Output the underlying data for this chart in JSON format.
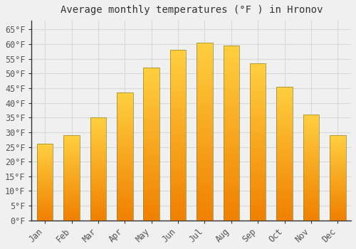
{
  "title": "Average monthly temperatures (°F ) in Hronov",
  "months": [
    "Jan",
    "Feb",
    "Mar",
    "Apr",
    "May",
    "Jun",
    "Jul",
    "Aug",
    "Sep",
    "Oct",
    "Nov",
    "Dec"
  ],
  "values": [
    26,
    29,
    35,
    43.5,
    52,
    58,
    60.5,
    59.5,
    53.5,
    45.5,
    36,
    29
  ],
  "bar_color": "#FFA500",
  "bar_color_top": "#FFD700",
  "bar_color_bottom": "#F08000",
  "ylim": [
    0,
    68
  ],
  "yticks": [
    0,
    5,
    10,
    15,
    20,
    25,
    30,
    35,
    40,
    45,
    50,
    55,
    60,
    65
  ],
  "grid_color": "#d8d8d8",
  "bg_color": "#f0f0f0",
  "plot_bg_color": "#f0f0f0",
  "title_fontsize": 10,
  "tick_fontsize": 8.5,
  "font_family": "monospace"
}
